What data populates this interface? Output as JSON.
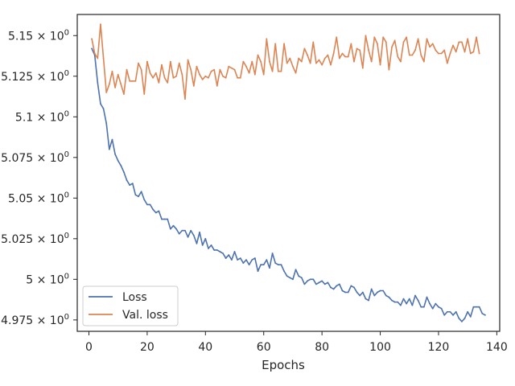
{
  "chart_data": {
    "type": "line",
    "title": "",
    "xlabel": "Epochs",
    "ylabel": "",
    "xlim": [
      -4,
      141
    ],
    "ylim": [
      4.968,
      5.163
    ],
    "grid": false,
    "legend_position": "lower-left",
    "x_ticks": [
      {
        "value": 0,
        "label": "0"
      },
      {
        "value": 20,
        "label": "20"
      },
      {
        "value": 40,
        "label": "40"
      },
      {
        "value": 60,
        "label": "60"
      },
      {
        "value": 80,
        "label": "80"
      },
      {
        "value": 100,
        "label": "100"
      },
      {
        "value": 120,
        "label": "120"
      },
      {
        "value": 140,
        "label": "140"
      }
    ],
    "y_ticks": [
      {
        "value": 4.975,
        "base": "4.975 × 10",
        "exp": "0"
      },
      {
        "value": 5.0,
        "base": "5 × 10",
        "exp": "0"
      },
      {
        "value": 5.025,
        "base": "5.025 × 10",
        "exp": "0"
      },
      {
        "value": 5.05,
        "base": "5.05 × 10",
        "exp": "0"
      },
      {
        "value": 5.075,
        "base": "5.075 × 10",
        "exp": "0"
      },
      {
        "value": 5.1,
        "base": "5.1 × 10",
        "exp": "0"
      },
      {
        "value": 5.125,
        "base": "5.125 × 10",
        "exp": "0"
      },
      {
        "value": 5.15,
        "base": "5.15 × 10",
        "exp": "0"
      }
    ],
    "series": [
      {
        "name": "Loss",
        "color": "#4c72b0",
        "values": [
          5.142,
          5.138,
          5.121,
          5.108,
          5.105,
          5.096,
          5.08,
          5.086,
          5.077,
          5.073,
          5.07,
          5.066,
          5.061,
          5.058,
          5.059,
          5.052,
          5.051,
          5.054,
          5.049,
          5.046,
          5.046,
          5.043,
          5.041,
          5.042,
          5.037,
          5.037,
          5.037,
          5.031,
          5.033,
          5.031,
          5.028,
          5.03,
          5.03,
          5.026,
          5.03,
          5.027,
          5.022,
          5.029,
          5.021,
          5.025,
          5.019,
          5.021,
          5.018,
          5.018,
          5.017,
          5.016,
          5.013,
          5.015,
          5.012,
          5.017,
          5.012,
          5.013,
          5.01,
          5.012,
          5.009,
          5.012,
          5.013,
          5.005,
          5.009,
          5.009,
          5.012,
          5.007,
          5.016,
          5.01,
          5.009,
          5.009,
          5.005,
          5.002,
          5.001,
          5.0,
          5.006,
          5.002,
          5.001,
          4.997,
          4.999,
          5.0,
          5.0,
          4.997,
          4.998,
          4.999,
          4.997,
          4.998,
          4.995,
          4.994,
          4.996,
          4.997,
          4.993,
          4.992,
          4.992,
          4.996,
          4.995,
          4.992,
          4.99,
          4.992,
          4.988,
          4.987,
          4.994,
          4.99,
          4.992,
          4.993,
          4.993,
          4.99,
          4.989,
          4.987,
          4.986,
          4.986,
          4.984,
          4.988,
          4.985,
          4.988,
          4.984,
          4.99,
          4.987,
          4.983,
          4.983,
          4.989,
          4.985,
          4.982,
          4.985,
          4.983,
          4.982,
          4.978,
          4.98,
          4.98,
          4.978,
          4.98,
          4.976,
          4.974,
          4.976,
          4.98,
          4.977,
          4.983,
          4.983,
          4.983,
          4.979,
          4.978
        ]
      },
      {
        "name": "Val. loss",
        "color": "#dd8452",
        "values": [
          5.148,
          5.139,
          5.136,
          5.157,
          5.136,
          5.115,
          5.12,
          5.128,
          5.118,
          5.126,
          5.12,
          5.114,
          5.129,
          5.122,
          5.122,
          5.122,
          5.133,
          5.129,
          5.114,
          5.134,
          5.127,
          5.124,
          5.127,
          5.121,
          5.132,
          5.124,
          5.121,
          5.134,
          5.124,
          5.125,
          5.133,
          5.126,
          5.111,
          5.135,
          5.129,
          5.119,
          5.131,
          5.126,
          5.123,
          5.125,
          5.124,
          5.128,
          5.129,
          5.119,
          5.129,
          5.125,
          5.124,
          5.131,
          5.13,
          5.129,
          5.124,
          5.124,
          5.134,
          5.131,
          5.127,
          5.134,
          5.126,
          5.138,
          5.134,
          5.126,
          5.148,
          5.134,
          5.128,
          5.145,
          5.128,
          5.128,
          5.145,
          5.133,
          5.136,
          5.131,
          5.127,
          5.136,
          5.134,
          5.142,
          5.138,
          5.133,
          5.146,
          5.133,
          5.135,
          5.132,
          5.136,
          5.138,
          5.132,
          5.139,
          5.149,
          5.136,
          5.139,
          5.137,
          5.137,
          5.145,
          5.134,
          5.142,
          5.141,
          5.13,
          5.15,
          5.141,
          5.134,
          5.149,
          5.145,
          5.132,
          5.149,
          5.146,
          5.129,
          5.143,
          5.147,
          5.137,
          5.134,
          5.146,
          5.149,
          5.138,
          5.138,
          5.141,
          5.148,
          5.138,
          5.134,
          5.148,
          5.143,
          5.145,
          5.141,
          5.139,
          5.139,
          5.141,
          5.133,
          5.139,
          5.144,
          5.14,
          5.146,
          5.146,
          5.14,
          5.148,
          5.139,
          5.14,
          5.149,
          5.139
        ]
      }
    ]
  }
}
